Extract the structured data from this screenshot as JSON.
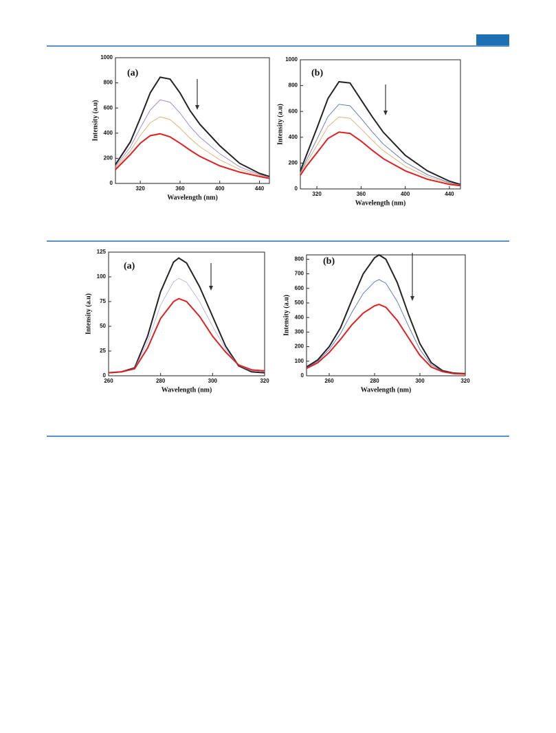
{
  "chart_data": [
    {
      "type": "line",
      "label": "(a)",
      "x_label": "Wavelength (nm)",
      "y_label": "Intensity (a.u)",
      "x": [
        295,
        310,
        320,
        330,
        340,
        350,
        360,
        370,
        380,
        400,
        420,
        440,
        450
      ],
      "xlim": [
        295,
        450
      ],
      "xticks": [
        320,
        360,
        400,
        440
      ],
      "ylim": [
        0,
        1000
      ],
      "yticks": [
        0,
        200,
        400,
        600,
        800,
        1000
      ],
      "series": [
        {
          "color": "#222222",
          "values": [
            150,
            330,
            520,
            720,
            845,
            830,
            720,
            580,
            470,
            300,
            160,
            80,
            55
          ]
        },
        {
          "color": "#9a7fd0",
          "values": [
            134,
            290,
            442,
            584,
            665,
            646,
            560,
            454,
            368,
            236,
            132,
            70,
            49
          ]
        },
        {
          "color": "#e6a86a",
          "values": [
            122,
            260,
            381,
            482,
            530,
            508,
            440,
            360,
            292,
            188,
            112,
            63,
            44
          ]
        },
        {
          "color": "#e02020",
          "values": [
            110,
            230,
            320,
            380,
            395,
            370,
            320,
            265,
            215,
            140,
            90,
            55,
            40
          ]
        }
      ]
    },
    {
      "type": "line",
      "label": "(b)",
      "x_label": "Wavelength (nm)",
      "y_label": "Intensity (a.u)",
      "x": [
        305,
        310,
        320,
        330,
        340,
        350,
        360,
        370,
        380,
        400,
        420,
        440,
        450
      ],
      "xlim": [
        305,
        450
      ],
      "xticks": [
        320,
        360,
        400,
        440
      ],
      "ylim": [
        0,
        1000
      ],
      "yticks": [
        0,
        200,
        400,
        600,
        800,
        1000
      ],
      "series": [
        {
          "color": "#222222",
          "values": [
            140,
            250,
            470,
            700,
            830,
            820,
            690,
            560,
            440,
            260,
            140,
            60,
            35
          ]
        },
        {
          "color": "#5a6fb0",
          "values": [
            124,
            214,
            384,
            560,
            655,
            644,
            546,
            443,
            348,
            206,
            110,
            49,
            31
          ]
        },
        {
          "color": "#e6a86a",
          "values": [
            116,
            194,
            336,
            483,
            557,
            547,
            466,
            378,
            297,
            176,
            95,
            43,
            29
          ]
        },
        {
          "color": "#e02020",
          "values": [
            105,
            170,
            280,
            390,
            440,
            430,
            370,
            300,
            235,
            140,
            75,
            35,
            25
          ]
        }
      ]
    },
    {
      "type": "line",
      "label": "(a)",
      "x_label": "Wavelength (nm)",
      "y_label": "Intensity (a.u)",
      "x": [
        260,
        265,
        270,
        275,
        280,
        285,
        287,
        290,
        295,
        300,
        305,
        310,
        315,
        320
      ],
      "xlim": [
        260,
        320
      ],
      "xticks": [
        260,
        280,
        300,
        320
      ],
      "ylim": [
        0,
        125
      ],
      "yticks": [
        0,
        25,
        50,
        75,
        100,
        125
      ],
      "series": [
        {
          "color": "#222222",
          "values": [
            3,
            4,
            8,
            40,
            85,
            115,
            119,
            114,
            90,
            60,
            30,
            10,
            4,
            3
          ]
        },
        {
          "color": "#b8b0e0",
          "values": [
            3,
            4,
            7.5,
            34,
            71.5,
            95,
            98.5,
            94.5,
            75,
            50,
            27,
            10.5,
            5,
            4
          ]
        },
        {
          "color": "#e02020",
          "values": [
            3,
            4,
            7,
            28,
            58,
            75,
            78,
            75,
            60,
            40,
            24,
            11,
            6,
            5
          ]
        }
      ]
    },
    {
      "type": "line",
      "label": "(b)",
      "x_label": "Wavelength (nm)",
      "y_label": "Intensity (a.u)",
      "x": [
        250,
        255,
        260,
        265,
        270,
        275,
        280,
        282,
        285,
        290,
        295,
        300,
        305,
        310,
        315,
        320
      ],
      "xlim": [
        250,
        320
      ],
      "xticks": [
        260,
        280,
        300,
        320
      ],
      "ylim": [
        0,
        830
      ],
      "yticks": [
        0,
        100,
        200,
        300,
        400,
        500,
        600,
        700,
        800
      ],
      "series": [
        {
          "color": "#222222",
          "values": [
            60,
            110,
            200,
            330,
            520,
            700,
            810,
            830,
            800,
            640,
            420,
            220,
            90,
            35,
            18,
            15
          ]
        },
        {
          "color": "#5a6fb0",
          "values": [
            55,
            100,
            180,
            290,
            435,
            565,
            645,
            660,
            635,
            510,
            340,
            180,
            75,
            31.5,
            16.5,
            13.5
          ]
        },
        {
          "color": "#e02020",
          "values": [
            50,
            90,
            160,
            250,
            350,
            430,
            480,
            490,
            470,
            380,
            260,
            140,
            60,
            28,
            15,
            12
          ]
        }
      ]
    }
  ]
}
